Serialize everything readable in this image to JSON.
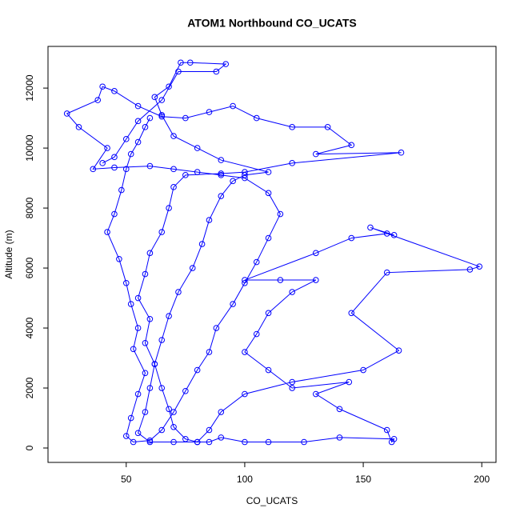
{
  "chart_data": {
    "type": "line",
    "title": "ATOM1 Northbound CO_UCATS",
    "x_label": "CO_UCATS",
    "y_label": "Altitude (m)",
    "x": [
      60,
      58,
      55,
      52,
      50,
      48,
      45,
      42,
      47,
      50,
      52,
      55,
      53,
      58,
      55,
      52,
      50,
      53,
      60,
      65,
      70,
      75,
      80,
      85,
      88,
      95,
      100,
      105,
      110,
      115,
      110,
      100,
      90,
      80,
      70,
      60,
      45,
      36,
      42,
      30,
      25,
      38,
      40,
      45,
      55,
      65,
      75,
      85,
      95,
      105,
      120,
      135,
      145,
      130,
      166,
      120,
      100,
      90,
      75,
      70,
      68,
      65,
      60,
      58,
      55,
      60,
      58,
      62,
      65,
      68,
      70,
      75,
      80,
      85,
      90,
      100,
      110,
      125,
      140,
      163,
      162,
      160,
      140,
      130,
      144,
      120,
      110,
      100,
      105,
      110,
      120,
      130,
      115,
      100,
      130,
      145,
      160,
      163,
      153,
      199,
      195,
      160,
      145,
      165,
      150,
      120,
      100,
      90,
      85,
      80,
      70,
      60,
      55,
      58,
      60,
      62,
      65,
      68,
      72,
      78,
      82,
      85,
      90,
      95,
      100,
      110,
      90,
      80,
      70,
      65,
      62,
      68,
      73,
      77,
      92,
      88,
      72,
      65,
      55,
      50,
      45,
      40
    ],
    "series": [
      {
        "name": "CO_UCATS",
        "color": "#0000ff",
        "values": [
          11000,
          10700,
          10200,
          9800,
          9300,
          8600,
          7800,
          7200,
          6300,
          5500,
          4800,
          4000,
          3300,
          2500,
          1800,
          1000,
          400,
          200,
          250,
          600,
          1200,
          1900,
          2600,
          3200,
          4000,
          4800,
          5500,
          6200,
          7000,
          7800,
          8500,
          9000,
          9100,
          9200,
          9300,
          9400,
          9350,
          9300,
          10000,
          10700,
          11150,
          11600,
          12050,
          11900,
          11400,
          11050,
          11000,
          11200,
          11400,
          11000,
          10700,
          10700,
          10100,
          9800,
          9850,
          9500,
          9200,
          9150,
          9100,
          8700,
          8000,
          7200,
          6500,
          5800,
          5000,
          4300,
          3500,
          2800,
          2000,
          1300,
          700,
          300,
          200,
          200,
          350,
          200,
          200,
          200,
          350,
          300,
          200,
          600,
          1300,
          1800,
          2200,
          2000,
          2600,
          3200,
          3800,
          4500,
          5200,
          5600,
          5600,
          5600,
          6500,
          7000,
          7150,
          7100,
          7350,
          6050,
          5950,
          5850,
          4500,
          3250,
          2600,
          2200,
          1800,
          1200,
          600,
          200,
          200,
          200,
          500,
          1200,
          2000,
          2800,
          3600,
          4400,
          5200,
          6000,
          6800,
          7600,
          8400,
          8900,
          9100,
          9200,
          9600,
          10000,
          10400,
          11100,
          11700,
          12050,
          12850,
          12850,
          12800,
          12550,
          12550,
          11600,
          10900,
          10300,
          9700,
          9500
        ]
      }
    ],
    "xlim": [
      17,
      206
    ],
    "ylim": [
      -480,
      13390
    ],
    "xticks": [
      50,
      100,
      150,
      200
    ],
    "yticks": [
      0,
      2000,
      4000,
      6000,
      8000,
      10000,
      12000
    ]
  }
}
